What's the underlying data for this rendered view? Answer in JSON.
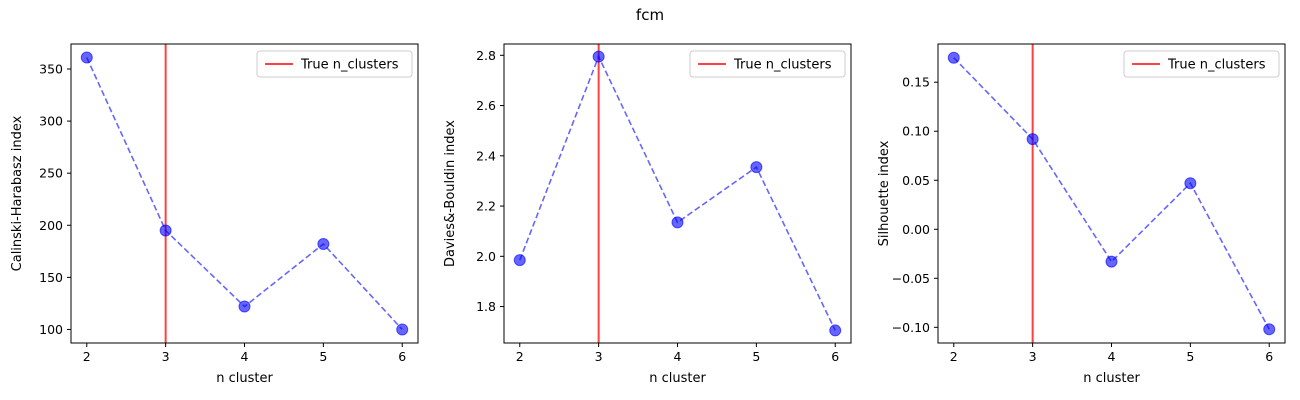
{
  "figure": {
    "title": "fcm"
  },
  "chart_data": [
    {
      "type": "line",
      "title": "",
      "xlabel": "n cluster",
      "ylabel": "Calinski-Harabasz index",
      "x": [
        2,
        3,
        4,
        5,
        6
      ],
      "series": [
        {
          "values": [
            361,
            195,
            122,
            182,
            100
          ],
          "color": "#0000ff",
          "linestyle": "dashed",
          "marker": "circle"
        }
      ],
      "reference_line": {
        "name": "True n_clusters",
        "x": 3,
        "color": "#ff0000"
      },
      "xlim": [
        1.8,
        6.2
      ],
      "ylim": [
        87,
        374
      ],
      "xticks": [
        "2",
        "3",
        "4",
        "5",
        "6"
      ],
      "yticks": [
        100,
        150,
        200,
        250,
        300,
        350
      ],
      "ytick_labels": [
        "100",
        "150",
        "200",
        "250",
        "300",
        "350"
      ],
      "legend": {
        "position": "top-right",
        "entries": [
          "True n_clusters"
        ]
      },
      "grid": false
    },
    {
      "type": "line",
      "title": "",
      "xlabel": "n cluster",
      "ylabel": "Davies&-Bouldin index",
      "x": [
        2,
        3,
        4,
        5,
        6
      ],
      "series": [
        {
          "values": [
            1.985,
            2.795,
            2.135,
            2.355,
            1.705
          ],
          "color": "#0000ff",
          "linestyle": "dashed",
          "marker": "circle"
        }
      ],
      "reference_line": {
        "name": "True n_clusters",
        "x": 3,
        "color": "#ff0000"
      },
      "xlim": [
        1.8,
        6.2
      ],
      "ylim": [
        1.655,
        2.845
      ],
      "xticks": [
        "2",
        "3",
        "4",
        "5",
        "6"
      ],
      "yticks": [
        1.8,
        2.0,
        2.2,
        2.4,
        2.6,
        2.8
      ],
      "ytick_labels": [
        "1.8",
        "2.0",
        "2.2",
        "2.4",
        "2.6",
        "2.8"
      ],
      "legend": {
        "position": "top-right",
        "entries": [
          "True n_clusters"
        ]
      },
      "grid": false
    },
    {
      "type": "line",
      "title": "",
      "xlabel": "n cluster",
      "ylabel": "Silhouette index",
      "x": [
        2,
        3,
        4,
        5,
        6
      ],
      "series": [
        {
          "values": [
            0.175,
            0.092,
            -0.033,
            0.047,
            -0.102
          ],
          "color": "#0000ff",
          "linestyle": "dashed",
          "marker": "circle"
        }
      ],
      "reference_line": {
        "name": "True n_clusters",
        "x": 3,
        "color": "#ff0000"
      },
      "xlim": [
        1.8,
        6.2
      ],
      "ylim": [
        -0.116,
        0.189
      ],
      "xticks": [
        "2",
        "3",
        "4",
        "5",
        "6"
      ],
      "yticks": [
        -0.1,
        -0.05,
        0.0,
        0.05,
        0.1,
        0.15
      ],
      "ytick_labels": [
        "−0.10",
        "−0.05",
        "0.00",
        "0.05",
        "0.10",
        "0.15"
      ],
      "legend": {
        "position": "top-right",
        "entries": [
          "True n_clusters"
        ]
      },
      "grid": false
    }
  ]
}
